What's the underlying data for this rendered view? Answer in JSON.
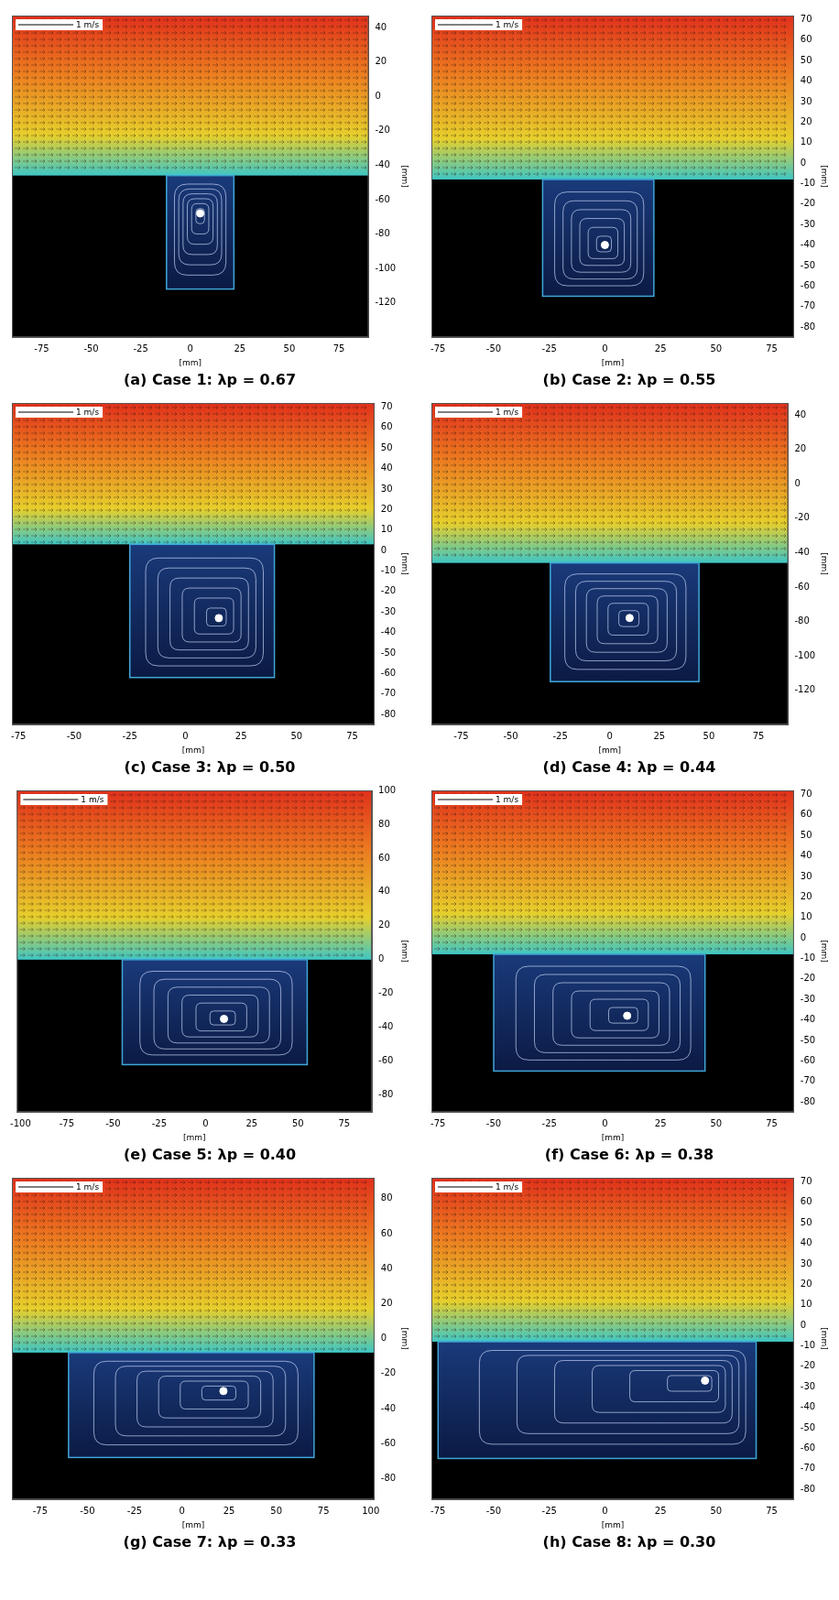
{
  "chart_data": [
    {
      "type": "vector_field",
      "title": "(a) Case 1: λp = 0.67",
      "x_label": "[mm]",
      "y_label": "[mm]",
      "scale_label": "1 m/s",
      "xlim": [
        -90,
        90
      ],
      "ylim": [
        -140,
        47
      ],
      "xticks": [
        -75,
        -50,
        -25,
        0,
        25,
        50,
        75
      ],
      "yticks": [
        -120,
        -100,
        -80,
        -60,
        -40,
        -20,
        0,
        20,
        40
      ],
      "cavity": {
        "x": [
          -12,
          22
        ],
        "y": [
          -112,
          -46
        ]
      },
      "vortex_center": {
        "x": 5,
        "y": -68
      }
    },
    {
      "type": "vector_field",
      "title": "(b) Case 2: λp = 0.55",
      "x_label": "[mm]",
      "y_label": "[mm]",
      "scale_label": "1 m/s",
      "xlim": [
        -78,
        85
      ],
      "ylim": [
        -85,
        72
      ],
      "xticks": [
        -75,
        -50,
        -25,
        0,
        25,
        50,
        75
      ],
      "yticks": [
        -80,
        -70,
        -60,
        -50,
        -40,
        -30,
        -20,
        -10,
        0,
        10,
        20,
        30,
        40,
        50,
        60,
        70
      ],
      "cavity": {
        "x": [
          -28,
          22
        ],
        "y": [
          -65,
          -8
        ]
      },
      "vortex_center": {
        "x": 0,
        "y": -40
      }
    },
    {
      "type": "vector_field",
      "title": "(c) Case 3: λp = 0.50",
      "x_label": "[mm]",
      "y_label": "[mm]",
      "scale_label": "1 m/s",
      "xlim": [
        -78,
        85
      ],
      "ylim": [
        -85,
        72
      ],
      "xticks": [
        -75,
        -50,
        -25,
        0,
        25,
        50,
        75
      ],
      "yticks": [
        -80,
        -70,
        -60,
        -50,
        -40,
        -30,
        -20,
        -10,
        0,
        10,
        20,
        30,
        40,
        50,
        60,
        70
      ],
      "cavity": {
        "x": [
          -25,
          40
        ],
        "y": [
          -62,
          3
        ]
      },
      "vortex_center": {
        "x": 15,
        "y": -33
      }
    },
    {
      "type": "vector_field",
      "title": "(d) Case 4: λp = 0.44",
      "x_label": "[mm]",
      "y_label": "[mm]",
      "scale_label": "1 m/s",
      "xlim": [
        -90,
        90
      ],
      "ylim": [
        -140,
        47
      ],
      "xticks": [
        -75,
        -50,
        -25,
        0,
        25,
        50,
        75
      ],
      "yticks": [
        -120,
        -100,
        -80,
        -60,
        -40,
        -20,
        0,
        20,
        40
      ],
      "cavity": {
        "x": [
          -30,
          45
        ],
        "y": [
          -115,
          -46
        ]
      },
      "vortex_center": {
        "x": 10,
        "y": -78
      }
    },
    {
      "type": "vector_field",
      "title": "(e) Case 5: λp = 0.40",
      "x_label": "[mm]",
      "y_label": "[mm]",
      "scale_label": "1 m/s",
      "xlim": [
        -102,
        90
      ],
      "ylim": [
        -90,
        100
      ],
      "xticks": [
        -100,
        -75,
        -50,
        -25,
        0,
        25,
        50,
        75
      ],
      "yticks": [
        -80,
        -60,
        -40,
        -20,
        0,
        20,
        40,
        60,
        80,
        100
      ],
      "cavity": {
        "x": [
          -45,
          55
        ],
        "y": [
          -62,
          0
        ]
      },
      "vortex_center": {
        "x": 10,
        "y": -35
      }
    },
    {
      "type": "vector_field",
      "title": "(f) Case 6: λp = 0.38",
      "x_label": "[mm]",
      "y_label": "[mm]",
      "scale_label": "1 m/s",
      "xlim": [
        -78,
        85
      ],
      "ylim": [
        -85,
        72
      ],
      "xticks": [
        -75,
        -50,
        -25,
        0,
        25,
        50,
        75
      ],
      "yticks": [
        -80,
        -70,
        -60,
        -50,
        -40,
        -30,
        -20,
        -10,
        0,
        10,
        20,
        30,
        40,
        50,
        60,
        70
      ],
      "cavity": {
        "x": [
          -50,
          45
        ],
        "y": [
          -65,
          -8
        ]
      },
      "vortex_center": {
        "x": 10,
        "y": -38
      }
    },
    {
      "type": "vector_field",
      "title": "(g) Case 7: λp = 0.33",
      "x_label": "[mm]",
      "y_label": "[mm]",
      "scale_label": "1 m/s",
      "xlim": [
        -90,
        102
      ],
      "ylim": [
        -92,
        92
      ],
      "xticks": [
        -75,
        -50,
        -25,
        0,
        25,
        50,
        75,
        100
      ],
      "yticks": [
        -80,
        -60,
        -40,
        -20,
        0,
        20,
        40,
        60,
        80
      ],
      "cavity": {
        "x": [
          -60,
          70
        ],
        "y": [
          -68,
          -8
        ]
      },
      "vortex_center": {
        "x": 22,
        "y": -30
      }
    },
    {
      "type": "vector_field",
      "title": "(h) Case 8: λp = 0.30",
      "x_label": "[mm]",
      "y_label": "[mm]",
      "scale_label": "1 m/s",
      "xlim": [
        -78,
        85
      ],
      "ylim": [
        -85,
        72
      ],
      "xticks": [
        -75,
        -50,
        -25,
        0,
        25,
        50,
        75
      ],
      "yticks": [
        -80,
        -70,
        -60,
        -50,
        -40,
        -30,
        -20,
        -10,
        0,
        10,
        20,
        30,
        40,
        50,
        60,
        70
      ],
      "cavity": {
        "x": [
          -75,
          68
        ],
        "y": [
          -65,
          -8
        ]
      },
      "vortex_center": {
        "x": 45,
        "y": -27
      }
    }
  ]
}
